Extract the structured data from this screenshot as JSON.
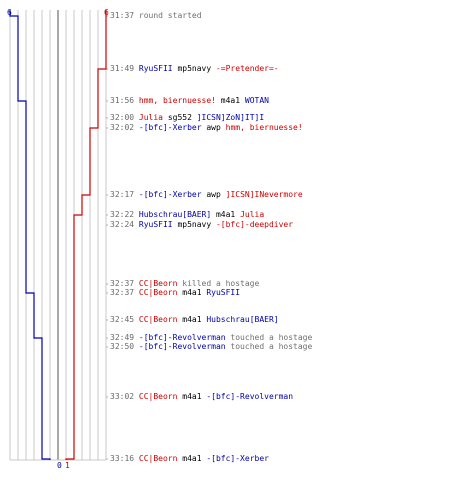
{
  "colors": {
    "ct": "#cc0000",
    "t": "#0000aa",
    "grid": "#c8c8c8",
    "mid": "#707070"
  },
  "axis": {
    "t_top": "6",
    "ct_top": "6",
    "t_bottom": "0",
    "ct_bottom": "1"
  },
  "chart_data": {
    "type": "line",
    "x_unit": "event",
    "series": [
      {
        "team": "t",
        "values": [
          6,
          5,
          5,
          4,
          4,
          4,
          4,
          4,
          4,
          4,
          3,
          3,
          2,
          2,
          2,
          1,
          1,
          0
        ]
      },
      {
        "team": "ct",
        "values": [
          6,
          6,
          5,
          5,
          5,
          4,
          3,
          2,
          2,
          2,
          2,
          2,
          2,
          2,
          2,
          1,
          1,
          1
        ]
      }
    ],
    "ylim": [
      0,
      6
    ]
  },
  "events": [
    {
      "time": "31:37",
      "parts": [
        {
          "text": "round started",
          "role": "act"
        }
      ]
    },
    {
      "time": "31:49",
      "parts": [
        {
          "text": "RyuSFII",
          "role": "t"
        },
        {
          "text": " mp5navy ",
          "role": "plain"
        },
        {
          "text": "-=Pretender=-",
          "role": "ct"
        }
      ]
    },
    {
      "time": "31:56",
      "parts": [
        {
          "text": "hmm, biernuesse!",
          "role": "ct"
        },
        {
          "text": " m4a1 ",
          "role": "plain"
        },
        {
          "text": "WOTAN",
          "role": "t"
        }
      ]
    },
    {
      "time": "32:00",
      "parts": [
        {
          "text": "Julia",
          "role": "ct"
        },
        {
          "text": " sg552 ",
          "role": "plain"
        },
        {
          "text": "]ICSN]ZoN]IT]I",
          "role": "t"
        }
      ]
    },
    {
      "time": "32:02",
      "parts": [
        {
          "text": "-[bfc]-Xerber",
          "role": "t"
        },
        {
          "text": " awp ",
          "role": "plain"
        },
        {
          "text": "hmm, biernuesse!",
          "role": "ct"
        }
      ]
    },
    {
      "time": "32:17",
      "parts": [
        {
          "text": "-[bfc]-Xerber",
          "role": "t"
        },
        {
          "text": " awp ",
          "role": "plain"
        },
        {
          "text": "]ICSN]INevermore",
          "role": "ct"
        }
      ]
    },
    {
      "time": "32:22",
      "parts": [
        {
          "text": "Hubschrau[BAER]",
          "role": "t"
        },
        {
          "text": " m4a1 ",
          "role": "plain"
        },
        {
          "text": "Julia",
          "role": "ct"
        }
      ]
    },
    {
      "time": "32:24",
      "parts": [
        {
          "text": "RyuSFII",
          "role": "t"
        },
        {
          "text": " mp5navy ",
          "role": "plain"
        },
        {
          "text": "-[bfc]-deepdiver",
          "role": "ct"
        }
      ]
    },
    {
      "time": "32:37",
      "parts": [
        {
          "text": "CC|Beorn",
          "role": "ct"
        },
        {
          "text": " killed a hostage",
          "role": "act"
        }
      ]
    },
    {
      "time": "32:37",
      "parts": [
        {
          "text": "CC|Beorn",
          "role": "ct"
        },
        {
          "text": " m4a1 ",
          "role": "plain"
        },
        {
          "text": "RyuSFII",
          "role": "t"
        }
      ]
    },
    {
      "time": "32:45",
      "parts": [
        {
          "text": "CC|Beorn",
          "role": "ct"
        },
        {
          "text": " m4a1 ",
          "role": "plain"
        },
        {
          "text": "Hubschrau[BAER]",
          "role": "t"
        }
      ]
    },
    {
      "time": "32:49",
      "parts": [
        {
          "text": "-[bfc]-Revolverman",
          "role": "t"
        },
        {
          "text": " touched a hostage",
          "role": "act"
        }
      ]
    },
    {
      "time": "32:50",
      "parts": [
        {
          "text": "-[bfc]-Revolverman",
          "role": "t"
        },
        {
          "text": " touched a hostage",
          "role": "act"
        }
      ]
    },
    {
      "time": "33:02",
      "parts": [
        {
          "text": "CC|Beorn",
          "role": "ct"
        },
        {
          "text": " m4a1 ",
          "role": "plain"
        },
        {
          "text": "-[bfc]-Revolverman",
          "role": "t"
        }
      ]
    },
    {
      "time": "33:16",
      "parts": [
        {
          "text": "CC|Beorn",
          "role": "ct"
        },
        {
          "text": " m4a1 ",
          "role": "plain"
        },
        {
          "text": "-[bfc]-Xerber",
          "role": "t"
        }
      ]
    }
  ]
}
